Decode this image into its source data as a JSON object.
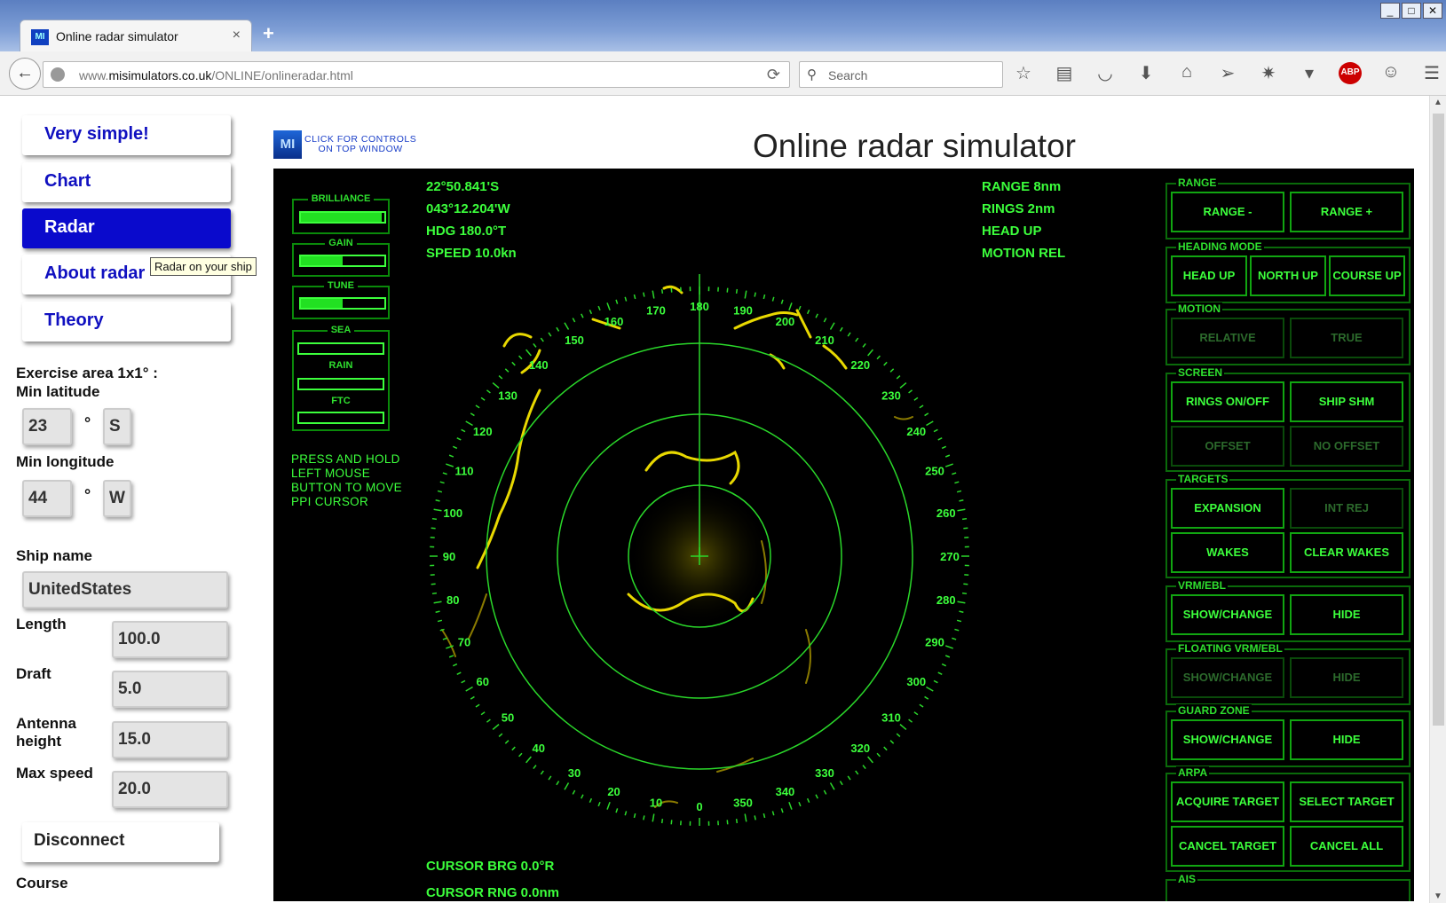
{
  "browser": {
    "tab_title": "Online radar simulator",
    "tab_favicon": "MI",
    "new_tab": "+",
    "close_tab": "×",
    "url_prefix": "www.",
    "url_domain": "misimulators.co.uk",
    "url_path": "/ONLINE/onlineradar.html",
    "search_placeholder": "Search",
    "abp_label": "ABP",
    "window_buttons": [
      "_",
      "□",
      "✕"
    ]
  },
  "sidebar": {
    "nav": [
      {
        "label": "Very simple!"
      },
      {
        "label": "Chart"
      },
      {
        "label": "Radar"
      },
      {
        "label": "About radar"
      },
      {
        "label": "Theory"
      }
    ],
    "tooltip": "Radar on your ship",
    "exercise_label": "Exercise area 1x1° :",
    "min_lat_label": "Min latitude",
    "min_lat_value": "23",
    "min_lat_hemi": "S",
    "min_lon_label": "Min longitude",
    "min_lon_value": "44",
    "min_lon_hemi": "W",
    "degree": "°",
    "ship_name_label": "Ship name",
    "ship_name_value": "UnitedStates",
    "length_label": "Length",
    "length_value": "100.0",
    "draft_label": "Draft",
    "draft_value": "5.0",
    "antenna_label_1": "Antenna",
    "antenna_label_2": "height",
    "antenna_value": "15.0",
    "max_speed_label": "Max speed",
    "max_speed_value": "20.0",
    "disconnect_label": "Disconnect",
    "course_label": "Course"
  },
  "sim": {
    "logo": "MI",
    "click_controls_1": "CLICK FOR CONTROLS",
    "click_controls_2": "ON  TOP  WINDOW",
    "title": "Online radar simulator"
  },
  "radar": {
    "lat": "22°50.841'S",
    "lon": "043°12.204'W",
    "hdg": "HDG 180.0°T",
    "speed": "SPEED 10.0kn",
    "range": "RANGE 8nm",
    "rings": "RINGS 2nm",
    "mode": "HEAD UP",
    "motion": "MOTION REL",
    "cursor_brg": "CURSOR BRG 0.0°R",
    "cursor_rng": "CURSOR RNG 0.0nm",
    "press_hold": [
      "PRESS AND HOLD",
      "LEFT MOUSE",
      "BUTTON TO MOVE",
      "PPI CURSOR"
    ],
    "controls": {
      "brilliance": {
        "label": "BRILLIANCE",
        "level": 0.97
      },
      "gain": {
        "label": "GAIN",
        "level": 0.5
      },
      "tune": {
        "label": "TUNE",
        "level": 0.5
      },
      "sea": {
        "label": "SEA",
        "level": 0
      },
      "rain": {
        "label": "RAIN",
        "level": 0
      },
      "ftc": {
        "label": "FTC",
        "level": 0
      }
    },
    "bearing_labels": [
      "180",
      "190",
      "200",
      "210",
      "220",
      "230",
      "240",
      "250",
      "260",
      "270",
      "280",
      "290",
      "300",
      "310",
      "320",
      "330",
      "340",
      "350",
      "0",
      "10",
      "20",
      "30",
      "40",
      "50",
      "60",
      "70",
      "80",
      "90",
      "100",
      "110",
      "120",
      "130",
      "140",
      "150",
      "160",
      "170"
    ],
    "panels": {
      "range": {
        "caption": "RANGE",
        "minus": "RANGE -",
        "plus": "RANGE +"
      },
      "heading": {
        "caption": "HEADING MODE",
        "head_up": "HEAD UP",
        "north_up": "NORTH UP",
        "course_up": "COURSE UP"
      },
      "motion": {
        "caption": "MOTION",
        "relative": "RELATIVE",
        "true": "TRUE"
      },
      "screen": {
        "caption": "SCREEN",
        "rings": "RINGS ON/OFF",
        "ship_shm": "SHIP SHM",
        "offset": "OFFSET",
        "no_offset": "NO OFFSET"
      },
      "targets": {
        "caption": "TARGETS",
        "expansion": "EXPANSION",
        "int_rej": "INT REJ",
        "wakes": "WAKES",
        "clear_wakes": "CLEAR WAKES"
      },
      "vrm": {
        "caption": "VRM/EBL",
        "show": "SHOW/CHANGE",
        "hide": "HIDE"
      },
      "floating": {
        "caption": "FLOATING VRM/EBL",
        "show": "SHOW/CHANGE",
        "hide": "HIDE"
      },
      "guard": {
        "caption": "GUARD ZONE",
        "show": "SHOW/CHANGE",
        "hide": "HIDE"
      },
      "arpa": {
        "caption": "ARPA",
        "acquire": "ACQUIRE TARGET",
        "select": "SELECT TARGET",
        "cancel": "CANCEL TARGET",
        "cancel_all": "CANCEL ALL"
      },
      "ais": {
        "caption": "AIS"
      }
    }
  }
}
